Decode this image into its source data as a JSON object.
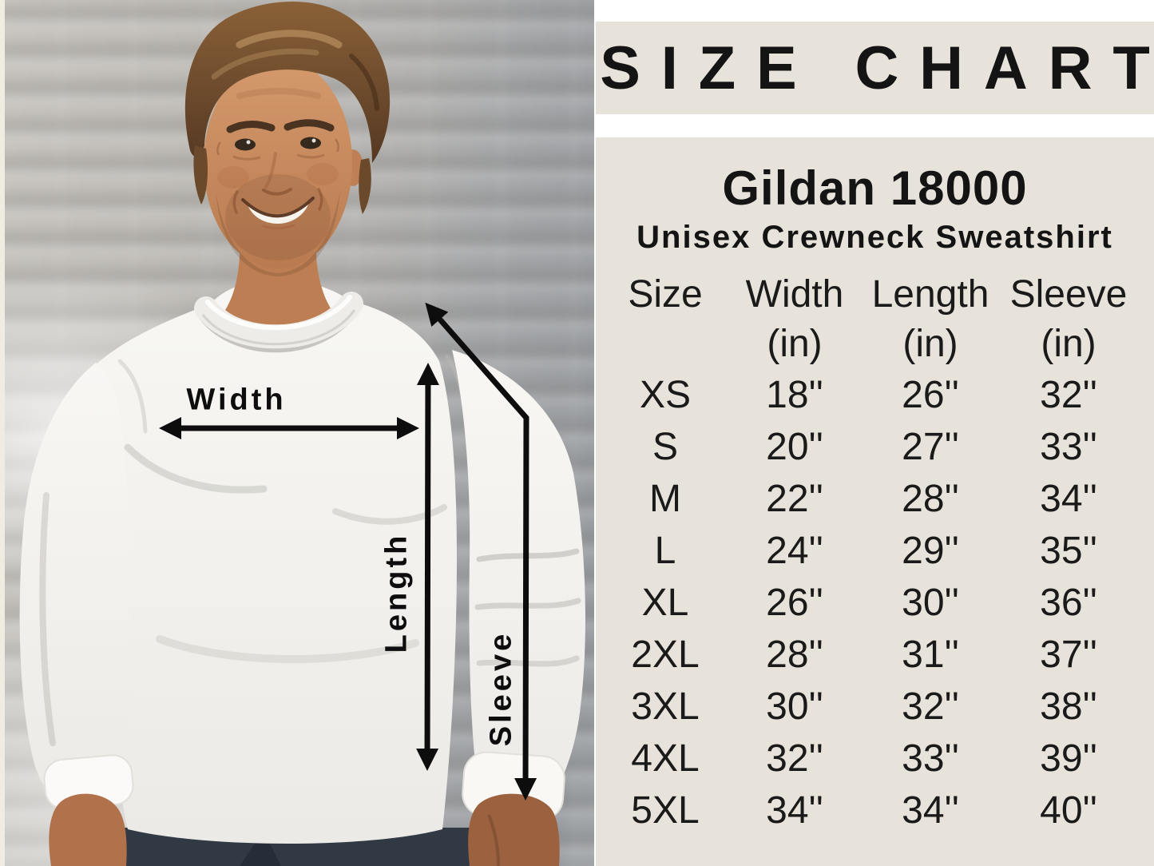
{
  "photo": {
    "width_label": "Width",
    "length_label": "Length",
    "sleeve_label": "Sleeve"
  },
  "panel": {
    "title": "SIZE CHART",
    "product_name": "Gildan 18000",
    "product_subtitle": "Unisex Crewneck Sweatshirt",
    "columns": [
      "Size",
      "Width",
      "Length",
      "Sleeve"
    ],
    "units": [
      "",
      "(in)",
      "(in)",
      "(in)"
    ]
  },
  "chart_data": {
    "type": "table",
    "title": "SIZE CHART",
    "product": "Gildan 18000 Unisex Crewneck Sweatshirt",
    "columns": [
      "Size",
      "Width (in)",
      "Length (in)",
      "Sleeve (in)"
    ],
    "rows": [
      [
        "XS",
        "18''",
        "26''",
        "32''"
      ],
      [
        "S",
        "20''",
        "27''",
        "33''"
      ],
      [
        "M",
        "22''",
        "28''",
        "34''"
      ],
      [
        "L",
        "24''",
        "29''",
        "35''"
      ],
      [
        "XL",
        "26''",
        "30''",
        "36''"
      ],
      [
        "2XL",
        "28''",
        "31''",
        "37''"
      ],
      [
        "3XL",
        "30''",
        "32''",
        "38''"
      ],
      [
        "4XL",
        "32''",
        "33''",
        "39''"
      ],
      [
        "5XL",
        "34''",
        "34''",
        "40''"
      ]
    ]
  },
  "colors": {
    "panel_background": "#e8e3da",
    "text": "#141414",
    "arrows": "#0d0d0d"
  }
}
